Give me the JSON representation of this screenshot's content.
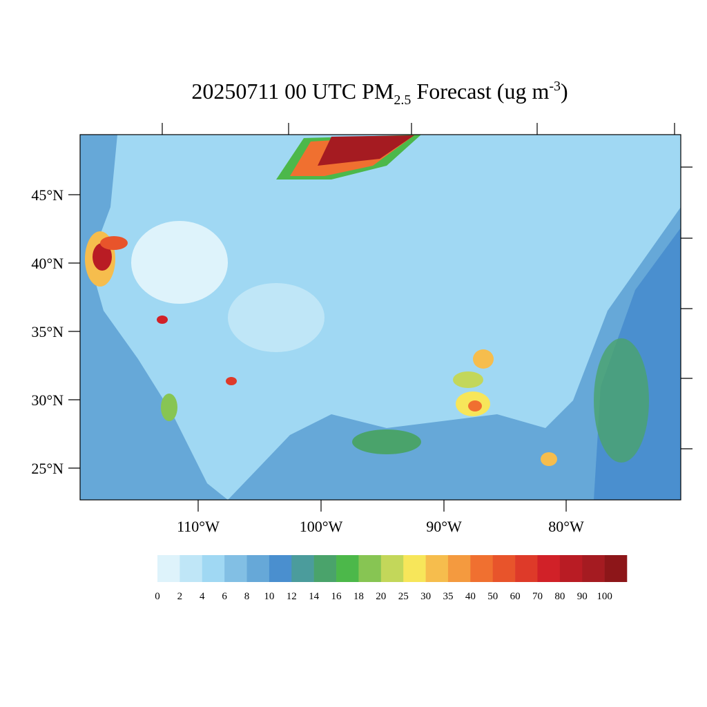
{
  "title": {
    "main": "20250711 00 UTC PM",
    "sub": "2.5",
    "rest": " Forecast (ug m",
    "sup": "-3",
    "end": ")"
  },
  "map": {
    "lat_labels": [
      "45°N",
      "40°N",
      "35°N",
      "30°N",
      "25°N"
    ],
    "lon_labels": [
      "110°W",
      "100°W",
      "90°W",
      "80°W"
    ]
  },
  "colorbar": {
    "levels": [
      "0",
      "2",
      "4",
      "6",
      "8",
      "10",
      "12",
      "14",
      "16",
      "18",
      "20",
      "25",
      "30",
      "35",
      "40",
      "50",
      "60",
      "70",
      "80",
      "90",
      "100"
    ],
    "colors": [
      "#def3fb",
      "#bfe6f7",
      "#a0d8f3",
      "#82bfe4",
      "#66a8d8",
      "#4a8fcf",
      "#4b9c9c",
      "#4aa36b",
      "#4cb84a",
      "#87c553",
      "#c3d75a",
      "#f7e65a",
      "#f6bd4d",
      "#f49a3f",
      "#f07030",
      "#e8542b",
      "#de3a29",
      "#d12128",
      "#b91c24",
      "#a51b21",
      "#8d1619"
    ]
  }
}
